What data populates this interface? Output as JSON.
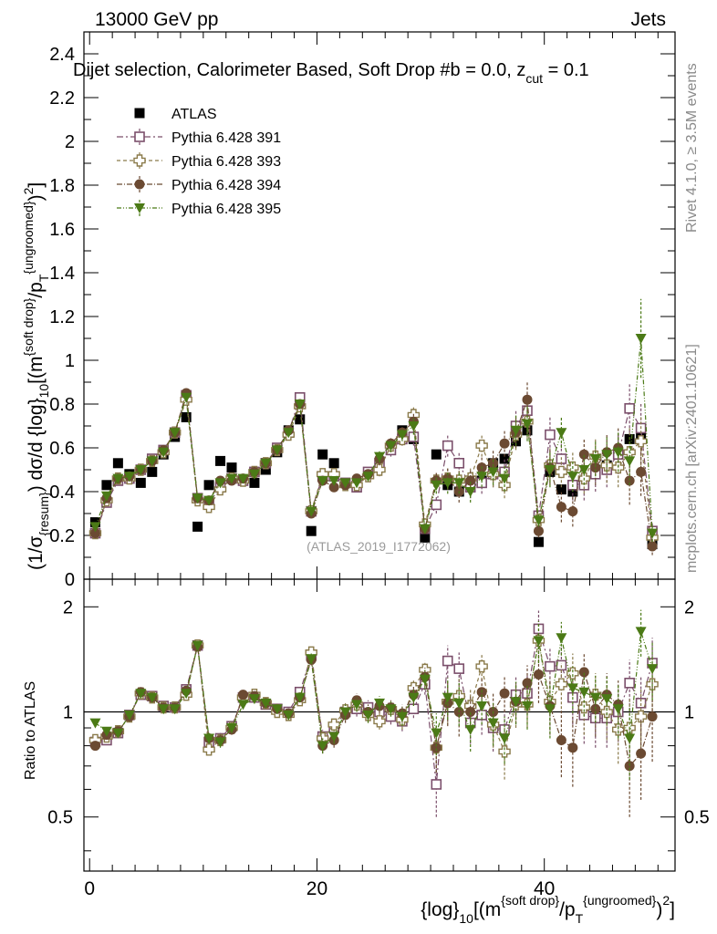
{
  "header": {
    "left": "13000 GeV pp",
    "right": "Jets"
  },
  "side_labels": {
    "rivet": "Rivet 4.1.0, ≥ 3.5M events",
    "mcplots": "mcplots.cern.ch [arXiv:2401.10621]"
  },
  "chart_data": {
    "type": "scatter",
    "title": "Dijet selection, Calorimeter Based, Soft Drop #b = 0.0, z_cut = 0.1",
    "title_main": "Dijet selection, Calorimeter Based, Soft Drop #",
    "title_beta": "b",
    "title_mid": " = 0.0, z",
    "title_cut": "cut",
    "title_end": " = 0.1",
    "watermark": "(ATLAS_2019_I1772062)",
    "ylabel_main": "(1/σ{resum}) dσ/d {log}10[(m{soft drop}/pT{ungroomed})2]",
    "ylabel_ratio": "Ratio to ATLAS",
    "xlabel": "{log}10[(m{soft drop}/pT{ungroomed})2]",
    "xlim": [
      -0.5,
      51.5
    ],
    "ylim_main": [
      0,
      2.5
    ],
    "ylim_ratio": [
      0.35,
      2.4
    ],
    "xticks": [
      "0",
      "20",
      "40"
    ],
    "yticks_main": [
      "0",
      "0.2",
      "0.4",
      "0.6",
      "0.8",
      "1",
      "1.2",
      "1.4",
      "1.6",
      "1.8",
      "2",
      "2.2",
      "2.4"
    ],
    "yticks_ratio": [
      "0.5",
      "1",
      "2"
    ],
    "x": [
      0.5,
      1.5,
      2.5,
      3.5,
      4.5,
      5.5,
      6.5,
      7.5,
      8.5,
      9.5,
      10.5,
      11.5,
      12.5,
      13.5,
      14.5,
      15.5,
      16.5,
      17.5,
      18.5,
      19.5,
      20.5,
      21.5,
      22.5,
      23.5,
      24.5,
      25.5,
      26.5,
      27.5,
      28.5,
      29.5,
      30.5,
      31.5,
      32.5,
      33.5,
      34.5,
      35.5,
      36.5,
      37.5,
      38.5,
      39.5,
      40.5,
      41.5,
      42.5,
      43.5,
      44.5,
      45.5,
      46.5,
      47.5,
      48.5,
      49.5
    ],
    "series": [
      {
        "name": "ATLAS",
        "color": "#000000",
        "marker": "square-filled",
        "values": [
          0.26,
          0.43,
          0.53,
          0.48,
          0.44,
          0.49,
          0.57,
          0.65,
          0.74,
          0.24,
          0.43,
          0.54,
          0.51,
          0.45,
          0.44,
          0.5,
          0.58,
          0.68,
          0.73,
          0.22,
          0.57,
          0.53,
          0.44,
          0.42,
          0.48,
          0.53,
          0.6,
          0.68,
          0.64,
          0.19,
          0.57,
          0.43,
          0.4,
          0.45,
          0.45,
          0.53,
          0.55,
          0.63,
          0.68,
          0.17,
          0.49,
          0.41,
          0.4,
          0.44,
          0.5,
          0.52,
          0.57,
          0.64,
          0.65,
          0.16
        ],
        "errors": [
          0.01,
          0.01,
          0.01,
          0.01,
          0.01,
          0.01,
          0.01,
          0.01,
          0.01,
          0.01,
          0.01,
          0.01,
          0.01,
          0.01,
          0.01,
          0.01,
          0.01,
          0.01,
          0.01,
          0.01,
          0.01,
          0.01,
          0.01,
          0.01,
          0.01,
          0.01,
          0.01,
          0.01,
          0.01,
          0.01,
          0.01,
          0.01,
          0.01,
          0.01,
          0.01,
          0.01,
          0.01,
          0.01,
          0.01,
          0.01,
          0.01,
          0.01,
          0.01,
          0.01,
          0.01,
          0.01,
          0.01,
          0.01,
          0.01,
          0.01
        ],
        "ratio": [
          1,
          1,
          1,
          1,
          1,
          1,
          1,
          1,
          1,
          1,
          1,
          1,
          1,
          1,
          1,
          1,
          1,
          1,
          1,
          1,
          1,
          1,
          1,
          1,
          1,
          1,
          1,
          1,
          1,
          1,
          1,
          1,
          1,
          1,
          1,
          1,
          1,
          1,
          1,
          1,
          1,
          1,
          1,
          1,
          1,
          1,
          1,
          1,
          1,
          1
        ],
        "ratio_errors": [
          0,
          0,
          0,
          0,
          0,
          0,
          0,
          0,
          0,
          0,
          0,
          0,
          0,
          0,
          0,
          0,
          0,
          0,
          0,
          0,
          0,
          0,
          0,
          0,
          0,
          0,
          0,
          0,
          0,
          0,
          0,
          0,
          0,
          0,
          0,
          0,
          0,
          0,
          0,
          0,
          0,
          0,
          0,
          0,
          0,
          0,
          0,
          0,
          0,
          0
        ]
      },
      {
        "name": "Pythia 6.428 391",
        "color": "#7b4f6b",
        "marker": "square-open",
        "dash": "7,3,2,3",
        "values": [
          0.21,
          0.35,
          0.45,
          0.46,
          0.5,
          0.55,
          0.59,
          0.67,
          0.84,
          0.37,
          0.35,
          0.42,
          0.46,
          0.45,
          0.49,
          0.53,
          0.6,
          0.67,
          0.83,
          0.31,
          0.47,
          0.47,
          0.44,
          0.42,
          0.49,
          0.53,
          0.59,
          0.64,
          0.65,
          0.23,
          0.34,
          0.61,
          0.53,
          0.42,
          0.44,
          0.48,
          0.49,
          0.7,
          0.77,
          0.29,
          0.66,
          0.55,
          0.43,
          0.43,
          0.48,
          0.5,
          0.57,
          0.78,
          0.69,
          0.22
        ],
        "errors": [
          0.01,
          0.01,
          0.01,
          0.01,
          0.01,
          0.01,
          0.01,
          0.01,
          0.02,
          0.01,
          0.01,
          0.01,
          0.01,
          0.01,
          0.01,
          0.01,
          0.01,
          0.01,
          0.02,
          0.01,
          0.02,
          0.02,
          0.02,
          0.02,
          0.02,
          0.03,
          0.03,
          0.03,
          0.04,
          0.02,
          0.04,
          0.05,
          0.05,
          0.05,
          0.05,
          0.06,
          0.06,
          0.07,
          0.08,
          0.03,
          0.08,
          0.07,
          0.07,
          0.07,
          0.08,
          0.08,
          0.09,
          0.11,
          0.11,
          0.04
        ],
        "ratio": [
          0.82,
          0.83,
          0.87,
          0.98,
          1.12,
          1.11,
          1.04,
          1.03,
          1.16,
          1.55,
          0.82,
          0.84,
          0.91,
          1.1,
          1.1,
          1.05,
          1.02,
          1.0,
          1.14,
          1.45,
          0.85,
          0.9,
          1.0,
          1.02,
          1.03,
          1.0,
          0.97,
          0.94,
          1.02,
          1.2,
          0.62,
          1.4,
          1.33,
          0.93,
          0.98,
          0.9,
          0.89,
          1.12,
          1.13,
          1.73,
          1.35,
          1.36,
          1.1,
          0.98,
          0.96,
          0.96,
          1.0,
          1.21,
          1.06,
          1.38
        ],
        "ratio_errors": [
          0.02,
          0.02,
          0.02,
          0.02,
          0.02,
          0.02,
          0.02,
          0.02,
          0.03,
          0.04,
          0.03,
          0.03,
          0.03,
          0.03,
          0.03,
          0.03,
          0.03,
          0.03,
          0.03,
          0.05,
          0.04,
          0.04,
          0.05,
          0.05,
          0.05,
          0.05,
          0.05,
          0.06,
          0.06,
          0.08,
          0.12,
          0.15,
          0.15,
          0.12,
          0.12,
          0.13,
          0.13,
          0.15,
          0.15,
          0.22,
          0.18,
          0.18,
          0.18,
          0.17,
          0.17,
          0.17,
          0.18,
          0.2,
          0.2,
          0.25
        ]
      },
      {
        "name": "Pythia 6.428 393",
        "color": "#8a7a4a",
        "marker": "cross-open",
        "dash": "4,3",
        "values": [
          0.21,
          0.36,
          0.46,
          0.46,
          0.5,
          0.54,
          0.58,
          0.67,
          0.82,
          0.36,
          0.33,
          0.41,
          0.46,
          0.45,
          0.49,
          0.53,
          0.59,
          0.66,
          0.79,
          0.31,
          0.48,
          0.48,
          0.43,
          0.43,
          0.47,
          0.5,
          0.61,
          0.64,
          0.75,
          0.25,
          0.45,
          0.46,
          0.45,
          0.46,
          0.61,
          0.48,
          0.43,
          0.66,
          0.72,
          0.27,
          0.52,
          0.49,
          0.51,
          0.46,
          0.56,
          0.52,
          0.51,
          0.58,
          0.63,
          0.19
        ],
        "errors": [
          0.01,
          0.01,
          0.01,
          0.01,
          0.01,
          0.01,
          0.01,
          0.01,
          0.02,
          0.01,
          0.01,
          0.01,
          0.01,
          0.01,
          0.01,
          0.01,
          0.01,
          0.01,
          0.02,
          0.01,
          0.02,
          0.02,
          0.02,
          0.02,
          0.02,
          0.03,
          0.03,
          0.03,
          0.04,
          0.02,
          0.04,
          0.05,
          0.05,
          0.05,
          0.05,
          0.06,
          0.06,
          0.07,
          0.08,
          0.03,
          0.08,
          0.07,
          0.07,
          0.07,
          0.08,
          0.08,
          0.09,
          0.11,
          0.11,
          0.04
        ],
        "ratio": [
          0.83,
          0.85,
          0.88,
          0.97,
          1.13,
          1.1,
          1.03,
          1.03,
          1.12,
          1.55,
          0.78,
          0.83,
          0.9,
          1.1,
          1.12,
          1.06,
          1.0,
          0.98,
          1.08,
          1.48,
          0.84,
          0.92,
          1.01,
          1.05,
          0.98,
          0.94,
          1.02,
          0.95,
          1.17,
          1.32,
          0.79,
          1.07,
          1.11,
          1.04,
          1.35,
          0.92,
          0.77,
          1.05,
          1.05,
          1.6,
          1.07,
          1.2,
          1.29,
          1.03,
          1.12,
          1.0,
          0.89,
          0.9,
          0.97,
          1.2
        ],
        "ratio_errors": [
          0.02,
          0.02,
          0.02,
          0.02,
          0.02,
          0.02,
          0.02,
          0.02,
          0.03,
          0.04,
          0.03,
          0.03,
          0.03,
          0.03,
          0.03,
          0.03,
          0.03,
          0.03,
          0.03,
          0.05,
          0.04,
          0.04,
          0.05,
          0.05,
          0.05,
          0.05,
          0.05,
          0.06,
          0.06,
          0.08,
          0.12,
          0.15,
          0.15,
          0.12,
          0.12,
          0.13,
          0.13,
          0.15,
          0.15,
          0.22,
          0.18,
          0.18,
          0.18,
          0.17,
          0.17,
          0.17,
          0.18,
          0.2,
          0.2,
          0.25
        ]
      },
      {
        "name": "Pythia 6.428 394",
        "color": "#6b4a32",
        "marker": "circle-filled",
        "dash": "6,2,1,2",
        "values": [
          0.21,
          0.37,
          0.46,
          0.47,
          0.5,
          0.54,
          0.59,
          0.67,
          0.85,
          0.37,
          0.36,
          0.45,
          0.45,
          0.46,
          0.49,
          0.53,
          0.59,
          0.68,
          0.8,
          0.3,
          0.45,
          0.42,
          0.43,
          0.46,
          0.48,
          0.55,
          0.62,
          0.67,
          0.72,
          0.23,
          0.45,
          0.46,
          0.4,
          0.45,
          0.51,
          0.53,
          0.62,
          0.67,
          0.82,
          0.22,
          0.51,
          0.33,
          0.31,
          0.57,
          0.51,
          0.58,
          0.6,
          0.45,
          0.49,
          0.15
        ],
        "errors": [
          0.01,
          0.01,
          0.01,
          0.01,
          0.01,
          0.01,
          0.01,
          0.01,
          0.02,
          0.01,
          0.01,
          0.01,
          0.01,
          0.01,
          0.01,
          0.01,
          0.01,
          0.01,
          0.02,
          0.01,
          0.02,
          0.02,
          0.02,
          0.02,
          0.02,
          0.03,
          0.03,
          0.03,
          0.04,
          0.02,
          0.04,
          0.05,
          0.05,
          0.05,
          0.05,
          0.06,
          0.06,
          0.07,
          0.08,
          0.03,
          0.08,
          0.07,
          0.07,
          0.07,
          0.08,
          0.08,
          0.09,
          0.11,
          0.11,
          0.04
        ],
        "ratio": [
          0.8,
          0.86,
          0.88,
          0.97,
          1.14,
          1.1,
          1.03,
          1.03,
          1.15,
          1.54,
          0.84,
          0.83,
          0.89,
          1.12,
          1.11,
          1.06,
          1.02,
          0.99,
          1.1,
          1.41,
          0.8,
          0.83,
          0.98,
          1.08,
          1.0,
          1.04,
          1.03,
          0.99,
          1.12,
          1.26,
          0.79,
          1.06,
          1.0,
          1.0,
          1.14,
          1.0,
          1.13,
          1.07,
          1.21,
          1.28,
          1.04,
          0.83,
          0.79,
          1.3,
          1.02,
          1.12,
          1.05,
          0.7,
          0.76,
          0.97
        ],
        "ratio_errors": [
          0.02,
          0.02,
          0.02,
          0.02,
          0.02,
          0.02,
          0.02,
          0.02,
          0.03,
          0.04,
          0.03,
          0.03,
          0.03,
          0.03,
          0.03,
          0.03,
          0.03,
          0.03,
          0.03,
          0.05,
          0.04,
          0.04,
          0.05,
          0.05,
          0.05,
          0.05,
          0.05,
          0.06,
          0.06,
          0.08,
          0.12,
          0.15,
          0.15,
          0.12,
          0.12,
          0.13,
          0.13,
          0.15,
          0.15,
          0.22,
          0.18,
          0.18,
          0.18,
          0.17,
          0.17,
          0.17,
          0.18,
          0.2,
          0.2,
          0.25
        ]
      },
      {
        "name": "Pythia 6.428 395",
        "color": "#4b7a16",
        "marker": "triangle-down-filled",
        "dash": "5,2,1,2,1,2",
        "values": [
          0.24,
          0.38,
          0.46,
          0.47,
          0.5,
          0.54,
          0.58,
          0.67,
          0.83,
          0.37,
          0.36,
          0.44,
          0.46,
          0.46,
          0.48,
          0.53,
          0.59,
          0.67,
          0.8,
          0.31,
          0.45,
          0.45,
          0.44,
          0.44,
          0.47,
          0.56,
          0.61,
          0.66,
          0.7,
          0.23,
          0.43,
          0.44,
          0.44,
          0.4,
          0.47,
          0.49,
          0.46,
          0.68,
          0.71,
          0.27,
          0.5,
          0.67,
          0.47,
          0.5,
          0.55,
          0.57,
          0.58,
          0.54,
          1.1,
          0.21
        ],
        "errors": [
          0.01,
          0.01,
          0.01,
          0.01,
          0.01,
          0.01,
          0.01,
          0.01,
          0.02,
          0.01,
          0.01,
          0.01,
          0.01,
          0.01,
          0.01,
          0.01,
          0.01,
          0.01,
          0.02,
          0.01,
          0.02,
          0.02,
          0.02,
          0.02,
          0.02,
          0.03,
          0.03,
          0.03,
          0.04,
          0.02,
          0.04,
          0.05,
          0.05,
          0.05,
          0.05,
          0.06,
          0.06,
          0.07,
          0.08,
          0.03,
          0.08,
          0.07,
          0.07,
          0.07,
          0.08,
          0.08,
          0.09,
          0.11,
          0.18,
          0.04
        ],
        "ratio": [
          0.93,
          0.88,
          0.87,
          0.98,
          1.13,
          1.1,
          1.02,
          1.02,
          1.13,
          1.55,
          0.84,
          0.82,
          0.9,
          1.05,
          1.09,
          1.06,
          1.02,
          0.98,
          1.1,
          1.42,
          0.8,
          0.85,
          1.0,
          1.05,
          0.98,
          1.06,
          1.02,
          0.97,
          1.1,
          1.24,
          0.87,
          1.1,
          1.06,
          0.89,
          1.04,
          0.93,
          0.84,
          1.07,
          1.04,
          1.6,
          1.02,
          1.63,
          1.17,
          1.14,
          1.1,
          1.09,
          1.02,
          0.84,
          1.7,
          1.33
        ],
        "ratio_errors": [
          0.02,
          0.02,
          0.02,
          0.02,
          0.02,
          0.02,
          0.02,
          0.02,
          0.03,
          0.04,
          0.03,
          0.03,
          0.03,
          0.03,
          0.03,
          0.03,
          0.03,
          0.03,
          0.03,
          0.05,
          0.04,
          0.04,
          0.05,
          0.05,
          0.05,
          0.05,
          0.05,
          0.06,
          0.06,
          0.08,
          0.12,
          0.15,
          0.15,
          0.12,
          0.12,
          0.13,
          0.13,
          0.15,
          0.15,
          0.22,
          0.18,
          0.18,
          0.18,
          0.17,
          0.17,
          0.17,
          0.18,
          0.2,
          0.26,
          0.25
        ]
      }
    ]
  }
}
